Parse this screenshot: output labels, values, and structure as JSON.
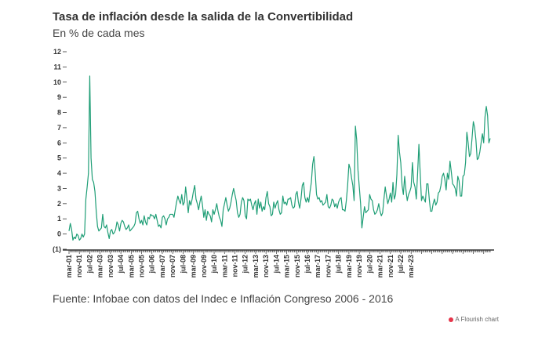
{
  "header": {
    "title": "Tasa de inflación desde la salida de la Convertibilidad",
    "subtitle": "En % de cada mes"
  },
  "footer": {
    "source": "Fuente: Infobae con datos del Indec e Inflación Congreso 2006 - 2016",
    "credit": "A Flourish chart"
  },
  "colors": {
    "line": "#1f9e76",
    "axis": "#333333",
    "flourish_dot": "#e6354a"
  },
  "chart_data": {
    "type": "line",
    "title": "Tasa de inflación desde la salida de la Convertibilidad",
    "subtitle": "En % de cada mes",
    "y_ticks": [
      "12",
      "11",
      "10",
      "9",
      "8",
      "7",
      "6",
      "5",
      "4",
      "3",
      "2",
      "1",
      "0",
      "(1)"
    ],
    "ylim": [
      -1,
      12
    ],
    "x_ticks": [
      "mar-01",
      "nov-01",
      "jul-02",
      "mar-03",
      "nov-03",
      "jul-04",
      "mar-05",
      "nov-05",
      "jul-06",
      "mar-07",
      "nov-07",
      "jul-08",
      "mar-09",
      "nov-09",
      "jul-10",
      "mar-11",
      "nov-11",
      "jul-12",
      "mar-13",
      "nov-13",
      "jul-14",
      "mar-15",
      "nov-15",
      "jul-16",
      "mar-17",
      "nov-17",
      "jul-18",
      "mar-19",
      "nov-19",
      "jul-20",
      "mar-21",
      "nov-21",
      "jul-22",
      "mar-23"
    ],
    "x_start": "2001-03",
    "grid": false,
    "series": [
      {
        "values": [
          0.2,
          0.7,
          0.3,
          -0.4,
          -0.2,
          -0.3,
          0.0,
          -0.1,
          -0.4,
          -0.3,
          0.0,
          -0.2,
          0.0,
          2.3,
          3.1,
          4.0,
          10.4,
          5.0,
          3.6,
          3.4,
          2.8,
          1.5,
          0.5,
          0.2,
          0.3,
          0.4,
          1.3,
          0.5,
          0.4,
          0.6,
          0.1,
          -0.3,
          0.2,
          0.3,
          0.0,
          0.1,
          0.3,
          0.8,
          0.6,
          0.2,
          0.7,
          0.9,
          0.8,
          0.5,
          0.3,
          0.4,
          0.6,
          0.2,
          0.3,
          0.4,
          0.5,
          0.7,
          1.4,
          1.5,
          1.0,
          0.7,
          0.9,
          0.6,
          1.2,
          0.8,
          0.6,
          1.1,
          1.0,
          1.3,
          1.2,
          1.2,
          1.0,
          1.3,
          0.9,
          0.5,
          0.6,
          0.4,
          1.1,
          1.2,
          1.0,
          0.6,
          1.0,
          1.1,
          1.3,
          1.3,
          1.3,
          1.1,
          1.6,
          2.1,
          2.5,
          2.2,
          2.0,
          2.6,
          1.9,
          2.1,
          3.1,
          2.3,
          1.4,
          2.2,
          1.9,
          2.3,
          2.8,
          3.2,
          2.3,
          2.0,
          1.6,
          2.1,
          2.5,
          1.9,
          1.1,
          1.6,
          0.9,
          1.5,
          1.3,
          1.2,
          0.8,
          1.6,
          1.3,
          1.6,
          2.0,
          1.5,
          1.1,
          0.9,
          0.5,
          1.6,
          2.0,
          2.4,
          1.9,
          1.5,
          1.7,
          2.1,
          2.6,
          3.0,
          2.6,
          2.2,
          1.4,
          1.1,
          1.3,
          2.1,
          2.4,
          2.2,
          1.2,
          1.0,
          2.3,
          2.2,
          2.3,
          1.9,
          1.6,
          2.0,
          2.2,
          1.3,
          2.3,
          1.7,
          2.1,
          1.5,
          1.8,
          1.6,
          2.4,
          2.8,
          2.0,
          1.8,
          1.2,
          1.3,
          2.1,
          1.7,
          2.0,
          2.2,
          1.6,
          1.3,
          1.4,
          2.5,
          2.0,
          2.1,
          1.9,
          2.3,
          2.3,
          2.4,
          1.9,
          1.7,
          1.8,
          2.6,
          2.8,
          2.1,
          1.7,
          2.3,
          3.2,
          3.4,
          2.4,
          2.1,
          2.4,
          2.1,
          2.8,
          3.4,
          4.6,
          5.1,
          4.0,
          2.6,
          2.3,
          2.4,
          2.1,
          2.2,
          1.9,
          2.0,
          2.1,
          2.6,
          1.8,
          1.7,
          1.9,
          2.3,
          2.2,
          1.8,
          2.0,
          1.7,
          2.1,
          2.3,
          2.4,
          1.6,
          1.6,
          1.5,
          2.2,
          3.2,
          4.6,
          4.3,
          3.7,
          3.2,
          2.2,
          7.1,
          6.2,
          4.2,
          3.1,
          2.0,
          0.4,
          1.1,
          1.8,
          1.4,
          1.5,
          1.6,
          2.6,
          2.3,
          2.2,
          1.6,
          1.3,
          1.4,
          1.6,
          2.0,
          1.5,
          1.2,
          1.4,
          2.3,
          3.1,
          2.5,
          2.0,
          2.3,
          2.7,
          2.1,
          3.4,
          2.3,
          2.6,
          3.9,
          6.5,
          5.4,
          4.7,
          3.2,
          2.6,
          3.8,
          2.9,
          2.2,
          2.6,
          2.8,
          3.1,
          4.7,
          3.4,
          3.1,
          2.3,
          4.0,
          5.9,
          4.0,
          2.2,
          2.5,
          2.3,
          2.1,
          3.3,
          3.3,
          2.3,
          1.5,
          1.5,
          2.0,
          2.3,
          1.9,
          2.1,
          2.7,
          2.8,
          3.2,
          3.8,
          4.0,
          3.6,
          2.9,
          4.0,
          3.6,
          4.8,
          4.1,
          3.3,
          3.2,
          3.0,
          2.5,
          3.8,
          3.5,
          2.5,
          2.5,
          3.8,
          3.9,
          4.7,
          6.7,
          6.0,
          5.1,
          5.3,
          6.3,
          7.4,
          7.0,
          6.2,
          4.9,
          5.0,
          5.4,
          6.0,
          6.6,
          6.0,
          7.7,
          8.4,
          7.8,
          6.0,
          6.3
        ]
      }
    ]
  }
}
